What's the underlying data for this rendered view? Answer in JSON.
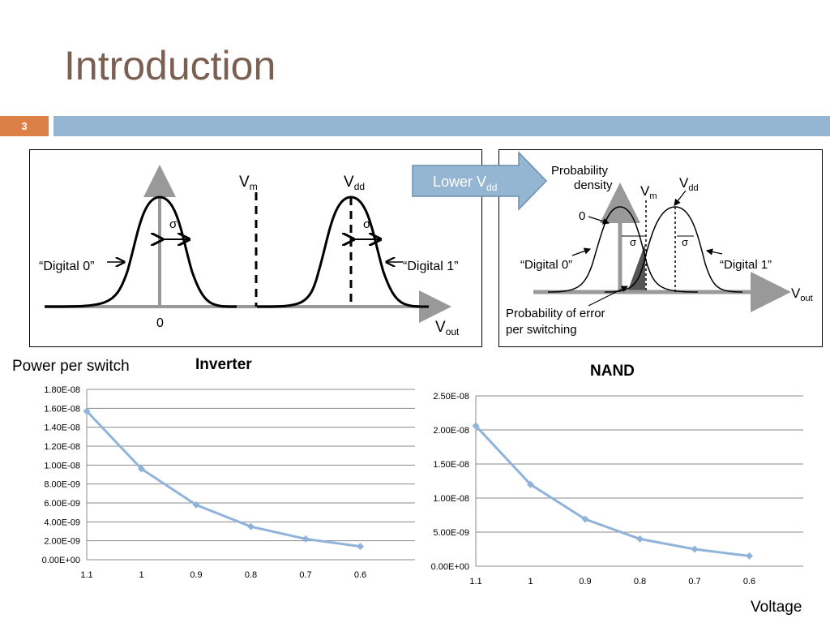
{
  "slide": {
    "title": "Introduction",
    "number": "3",
    "accent_color": "#dd8047",
    "bar_color": "#94b6d2"
  },
  "diagram_left": {
    "vm_label": "V",
    "vm_sub": "m",
    "vdd_label": "V",
    "vdd_sub": "dd",
    "sigma1": "σ",
    "sigma2": "σ",
    "digital0": "“Digital 0”",
    "digital1": "“Digital 1”",
    "zero": "0",
    "vout_label": "V",
    "vout_sub": "out"
  },
  "arrow_label": {
    "text": "Lower V",
    "sub": "dd"
  },
  "diagram_right": {
    "prob_line1": "Probability",
    "prob_line2": "density",
    "vm_label": "V",
    "vm_sub": "m",
    "vdd_label": "V",
    "vdd_sub": "dd",
    "zero": "0",
    "sigma1": "σ",
    "sigma2": "σ",
    "digital0": "“Digital 0”",
    "digital1": "“Digital 1”",
    "err_line1": "Probability of error",
    "err_line2": "per switching",
    "vout_label": "V",
    "vout_sub": "out"
  },
  "labels": {
    "power_per_switch": "Power per switch",
    "voltage": "Voltage"
  },
  "chart_data": [
    {
      "type": "line",
      "title": "Inverter",
      "categories": [
        "1.1",
        "1",
        "0.9",
        "0.8",
        "0.7",
        "0.6"
      ],
      "values": [
        1.57e-08,
        9.6e-09,
        5.8e-09,
        3.5e-09,
        2.2e-09,
        1.4e-09
      ],
      "ylim": [
        0,
        1.8e-08
      ],
      "yticks": [
        "0.00E+00",
        "2.00E-09",
        "4.00E-09",
        "6.00E-09",
        "8.00E-09",
        "1.00E-08",
        "1.20E-08",
        "1.40E-08",
        "1.60E-08",
        "1.80E-08"
      ],
      "grid": true,
      "color": "#8fb3d9"
    },
    {
      "type": "line",
      "title": "NAND",
      "categories": [
        "1.1",
        "1",
        "0.9",
        "0.8",
        "0.7",
        "0.6"
      ],
      "values": [
        2.06e-08,
        1.2e-08,
        6.9e-09,
        4e-09,
        2.5e-09,
        1.5e-09
      ],
      "ylim": [
        0,
        2.5e-08
      ],
      "yticks": [
        "0.00E+00",
        "5.00E-09",
        "1.00E-08",
        "1.50E-08",
        "2.00E-08",
        "2.50E-08"
      ],
      "grid": true,
      "color": "#8fb3d9"
    }
  ]
}
